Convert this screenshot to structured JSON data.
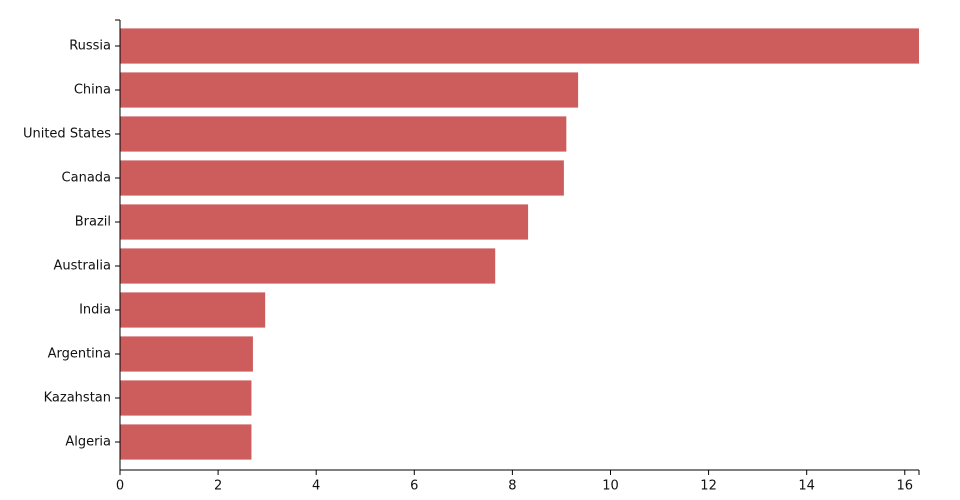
{
  "chart_data": {
    "type": "hbar",
    "categories": [
      "Russia",
      "China",
      "United States",
      "Canada",
      "Brazil",
      "Australia",
      "India",
      "Argentina",
      "Kazahstan",
      "Algeria"
    ],
    "values": [
      16.29,
      9.34,
      9.1,
      9.05,
      8.32,
      7.65,
      2.96,
      2.71,
      2.68,
      2.68
    ],
    "color": "#cd5c5c",
    "xlim": [
      0,
      16.29
    ],
    "xticks": [
      0,
      2,
      4,
      6,
      8,
      10,
      12,
      14,
      16
    ]
  }
}
